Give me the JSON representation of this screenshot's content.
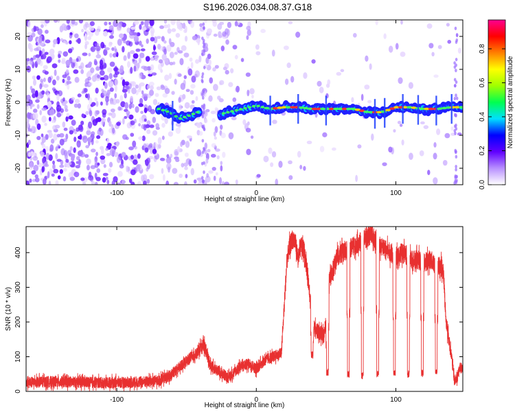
{
  "title": "S196.2026.034.08.37.G18",
  "chart_data": [
    {
      "type": "heatmap",
      "name": "spectrogram",
      "xlabel": "Height of straight line (km)",
      "ylabel": "Frequency (Hz)",
      "xlim": [
        -165,
        148
      ],
      "ylim": [
        -25,
        25
      ],
      "xticks": [
        -100,
        0,
        100
      ],
      "yticks": [
        -20,
        -10,
        0,
        10,
        20
      ],
      "xtick_labels": [
        "-100",
        "0",
        "100"
      ],
      "ytick_labels": [
        "-20",
        "-10",
        "0",
        "10",
        "20"
      ],
      "colorbar": {
        "label": "Normalized spectral amplitude",
        "range": [
          0.0,
          0.97
        ],
        "ticks": [
          0.0,
          0.2,
          0.4,
          0.6,
          0.8
        ],
        "tick_labels": [
          "0.0",
          "0.2",
          "0.4",
          "0.6",
          "0.8"
        ],
        "colors": [
          "#ffffff",
          "#b890ff",
          "#6000ff",
          "#0000ff",
          "#00e0ff",
          "#00ff50",
          "#a0ff00",
          "#ffff00",
          "#ff8000",
          "#ff0000",
          "#ff0090"
        ]
      },
      "signal_track": {
        "x": [
          -70,
          -62,
          -55,
          -48,
          -42,
          -30,
          -20,
          -10,
          0,
          10,
          20,
          30,
          40,
          50,
          60,
          70,
          80,
          85,
          90,
          100,
          110,
          120,
          130,
          140,
          148
        ],
        "frequency": [
          -2,
          -3,
          -5,
          -4,
          -3,
          -4,
          -3,
          -2,
          -1,
          -2,
          -1.5,
          -1.5,
          -2,
          -2,
          -2,
          -2,
          -3,
          -3,
          -3,
          -1.5,
          -1.5,
          -2,
          -2,
          -1.5,
          -1.5
        ]
      }
    },
    {
      "type": "line",
      "name": "snr",
      "xlabel": "Height of straight line (km)",
      "ylabel": "SNR (10 * v/v)",
      "xlim": [
        -165,
        148
      ],
      "ylim": [
        0,
        475
      ],
      "xticks": [
        -100,
        0,
        100
      ],
      "yticks": [
        0,
        100,
        200,
        300,
        400
      ],
      "xtick_labels": [
        "-100",
        "0",
        "100"
      ],
      "ytick_labels": [
        "0",
        "100",
        "200",
        "300",
        "400"
      ],
      "line_color": "#e83030",
      "series": [
        {
          "name": "SNR",
          "x": [
            -165,
            -150,
            -130,
            -110,
            -90,
            -70,
            -62,
            -55,
            -48,
            -42,
            -38,
            -33,
            -28,
            -20,
            -12,
            -5,
            0,
            6,
            12,
            18,
            22,
            24,
            26,
            28,
            30,
            32,
            34,
            36,
            38,
            40,
            42,
            45,
            48,
            50,
            52,
            55,
            58,
            62,
            66,
            70,
            74,
            78,
            82,
            85,
            88,
            92,
            96,
            100,
            104,
            108,
            112,
            116,
            120,
            124,
            128,
            132,
            134,
            136,
            138,
            140,
            142,
            144,
            146,
            148
          ],
          "values": [
            25,
            28,
            27,
            25,
            26,
            30,
            45,
            70,
            95,
            110,
            140,
            75,
            60,
            40,
            70,
            80,
            65,
            90,
            100,
            110,
            380,
            420,
            440,
            430,
            380,
            420,
            410,
            360,
            300,
            200,
            180,
            170,
            160,
            200,
            320,
            350,
            390,
            400,
            410,
            420,
            430,
            440,
            450,
            440,
            420,
            410,
            400,
            390,
            400,
            390,
            380,
            380,
            370,
            380,
            370,
            360,
            350,
            200,
            150,
            100,
            30,
            40,
            70,
            60
          ]
        }
      ],
      "dropouts": [
        {
          "x": 40,
          "bottom": 95
        },
        {
          "x": 51,
          "bottom": 45
        },
        {
          "x": 66,
          "bottom": 40
        },
        {
          "x": 76,
          "bottom": 35
        },
        {
          "x": 87,
          "bottom": 40
        },
        {
          "x": 99,
          "bottom": 45
        },
        {
          "x": 109,
          "bottom": 40
        },
        {
          "x": 119,
          "bottom": 42
        },
        {
          "x": 129,
          "bottom": 50
        }
      ]
    }
  ]
}
